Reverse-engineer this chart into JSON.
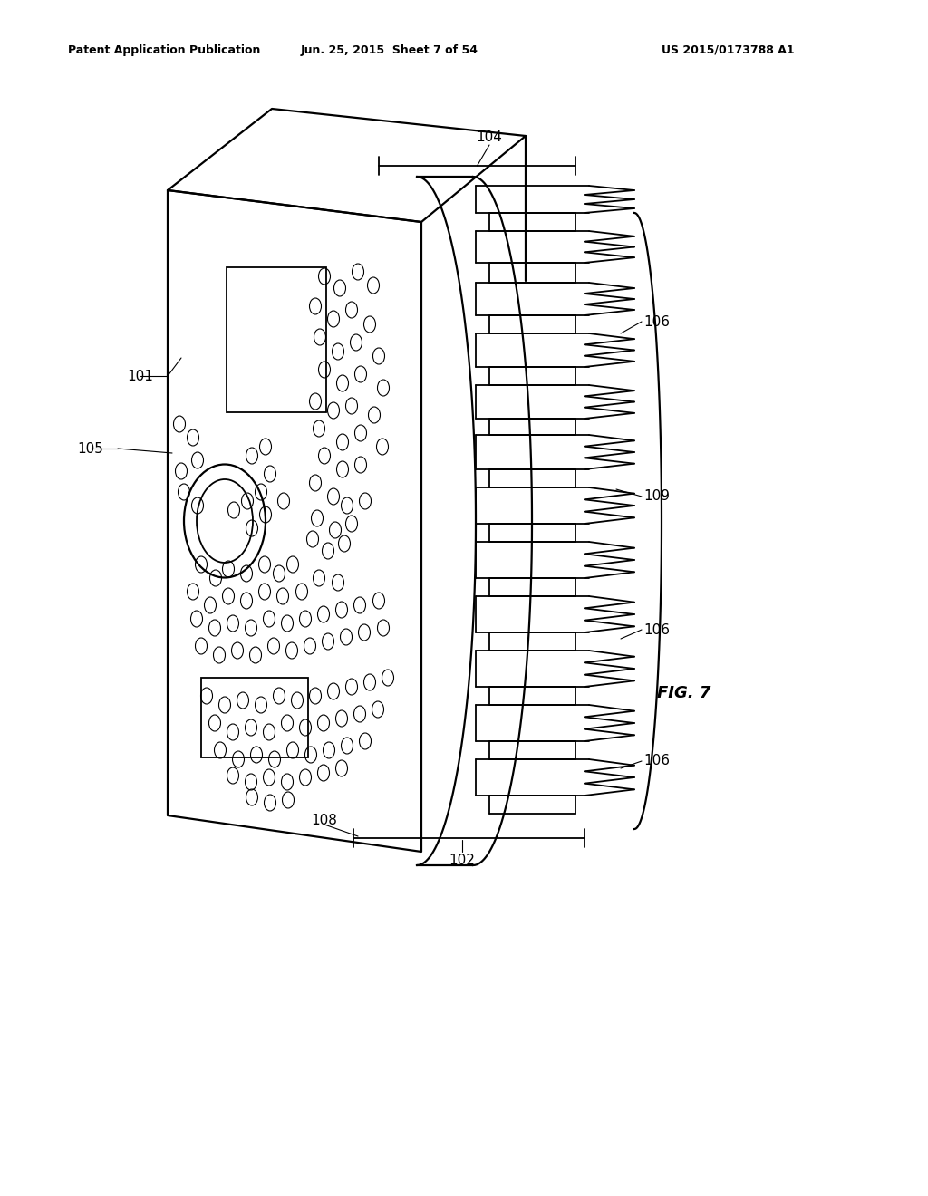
{
  "background_color": "#ffffff",
  "header_left": "Patent Application Publication",
  "header_center": "Jun. 25, 2015  Sheet 7 of 54",
  "header_right": "US 2015/0173788 A1",
  "figure_label": "FIG. 7",
  "line_color": "#000000",
  "label_fontsize": 11,
  "header_fontsize": 9
}
